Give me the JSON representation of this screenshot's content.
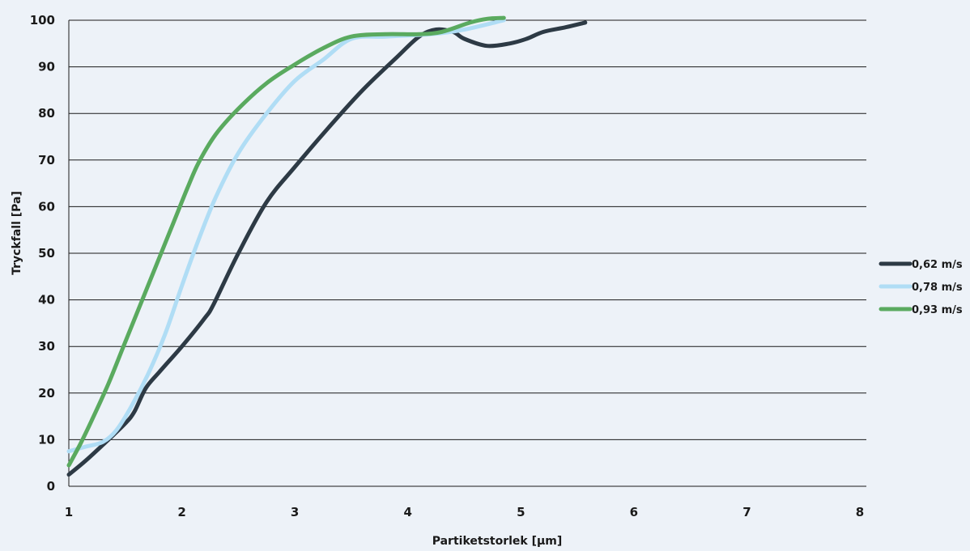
{
  "chart_data": {
    "type": "line",
    "xlabel": "Partiketstorlek [µm]",
    "ylabel": "Tryckfall [Pa]",
    "xlim": [
      1,
      8
    ],
    "ylim": [
      0,
      100
    ],
    "xticks": [
      "1",
      "2",
      "3",
      "4",
      "5",
      "6",
      "7",
      "8"
    ],
    "yticks": [
      "0",
      "10",
      "20",
      "30",
      "40",
      "50",
      "60",
      "70",
      "80",
      "90",
      "100"
    ],
    "grid": "horizontal",
    "legend_position": "right",
    "series": [
      {
        "name": "0,62 m/s",
        "color": "#2d3a45",
        "points": [
          [
            1.0,
            2.5
          ],
          [
            1.15,
            5.5
          ],
          [
            1.35,
            10
          ],
          [
            1.5,
            13.5
          ],
          [
            1.58,
            16
          ],
          [
            1.68,
            21
          ],
          [
            1.8,
            24.5
          ],
          [
            2.0,
            30
          ],
          [
            2.2,
            36
          ],
          [
            2.28,
            39
          ],
          [
            2.5,
            50
          ],
          [
            2.75,
            61
          ],
          [
            3.0,
            68.5
          ],
          [
            3.3,
            77
          ],
          [
            3.6,
            85
          ],
          [
            3.9,
            92
          ],
          [
            4.1,
            96.5
          ],
          [
            4.25,
            98
          ],
          [
            4.4,
            97.5
          ],
          [
            4.5,
            96
          ],
          [
            4.7,
            94.5
          ],
          [
            4.9,
            95
          ],
          [
            5.05,
            96
          ],
          [
            5.2,
            97.5
          ],
          [
            5.4,
            98.5
          ],
          [
            5.57,
            99.5
          ]
        ]
      },
      {
        "name": "0,78 m/s",
        "color": "#b0ddf5",
        "points": [
          [
            1.0,
            7.5
          ],
          [
            1.15,
            8.5
          ],
          [
            1.3,
            9.5
          ],
          [
            1.42,
            12
          ],
          [
            1.55,
            17
          ],
          [
            1.7,
            24
          ],
          [
            1.85,
            32.5
          ],
          [
            2.0,
            43
          ],
          [
            2.15,
            53
          ],
          [
            2.3,
            62
          ],
          [
            2.5,
            71.5
          ],
          [
            2.75,
            80
          ],
          [
            3.0,
            87
          ],
          [
            3.25,
            91.5
          ],
          [
            3.5,
            96
          ],
          [
            3.8,
            96.5
          ],
          [
            4.2,
            97
          ],
          [
            4.5,
            98
          ],
          [
            4.85,
            100
          ]
        ]
      },
      {
        "name": "0,93 m/s",
        "color": "#5aaa5f",
        "points": [
          [
            1.0,
            4.5
          ],
          [
            1.1,
            9
          ],
          [
            1.2,
            14
          ],
          [
            1.35,
            22
          ],
          [
            1.5,
            31
          ],
          [
            1.7,
            43
          ],
          [
            1.9,
            55
          ],
          [
            2.05,
            64
          ],
          [
            2.15,
            69.5
          ],
          [
            2.3,
            75.5
          ],
          [
            2.5,
            81
          ],
          [
            2.75,
            86.5
          ],
          [
            3.0,
            90.5
          ],
          [
            3.25,
            94
          ],
          [
            3.5,
            96.5
          ],
          [
            3.8,
            97
          ],
          [
            4.1,
            97
          ],
          [
            4.3,
            97.5
          ],
          [
            4.55,
            99.5
          ],
          [
            4.7,
            100.3
          ],
          [
            4.85,
            100.5
          ]
        ]
      }
    ]
  }
}
